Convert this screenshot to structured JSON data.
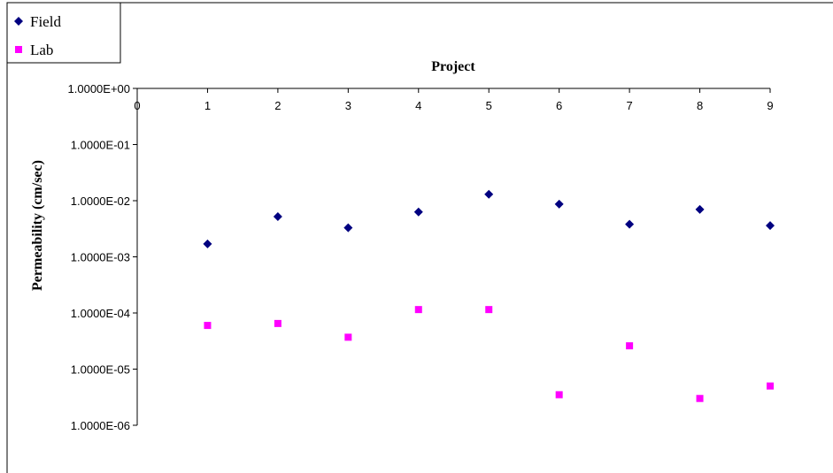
{
  "chart_data": {
    "type": "scatter",
    "xlabel": "Project",
    "ylabel": "Permeability (cm/sec)",
    "x_axis_position": "top",
    "y_scale": "log",
    "xlim": [
      0,
      9
    ],
    "ylim": [
      1e-06,
      1
    ],
    "x_ticks": [
      "0",
      "1",
      "2",
      "3",
      "4",
      "5",
      "6",
      "7",
      "8",
      "9"
    ],
    "y_ticks": [
      "1.0000E+00",
      "1.0000E-01",
      "1.0000E-02",
      "1.0000E-03",
      "1.0000E-04",
      "1.0000E-05",
      "1.0000E-06"
    ],
    "grid": false,
    "legend_position": "top-left",
    "series": [
      {
        "name": "Field",
        "marker": "diamond",
        "color": "#000080",
        "x": [
          1,
          2,
          3,
          4,
          5,
          6,
          7,
          8,
          9
        ],
        "y": [
          0.0017,
          0.0052,
          0.0033,
          0.0063,
          0.013,
          0.0087,
          0.0038,
          0.007,
          0.0036
        ]
      },
      {
        "name": "Lab",
        "marker": "square",
        "color": "#ff00ff",
        "x": [
          1,
          2,
          3,
          4,
          5,
          6,
          7,
          8,
          9
        ],
        "y": [
          6e-05,
          6.5e-05,
          3.7e-05,
          0.000115,
          0.000115,
          3.5e-06,
          2.6e-05,
          3e-06,
          5e-06
        ]
      }
    ]
  }
}
